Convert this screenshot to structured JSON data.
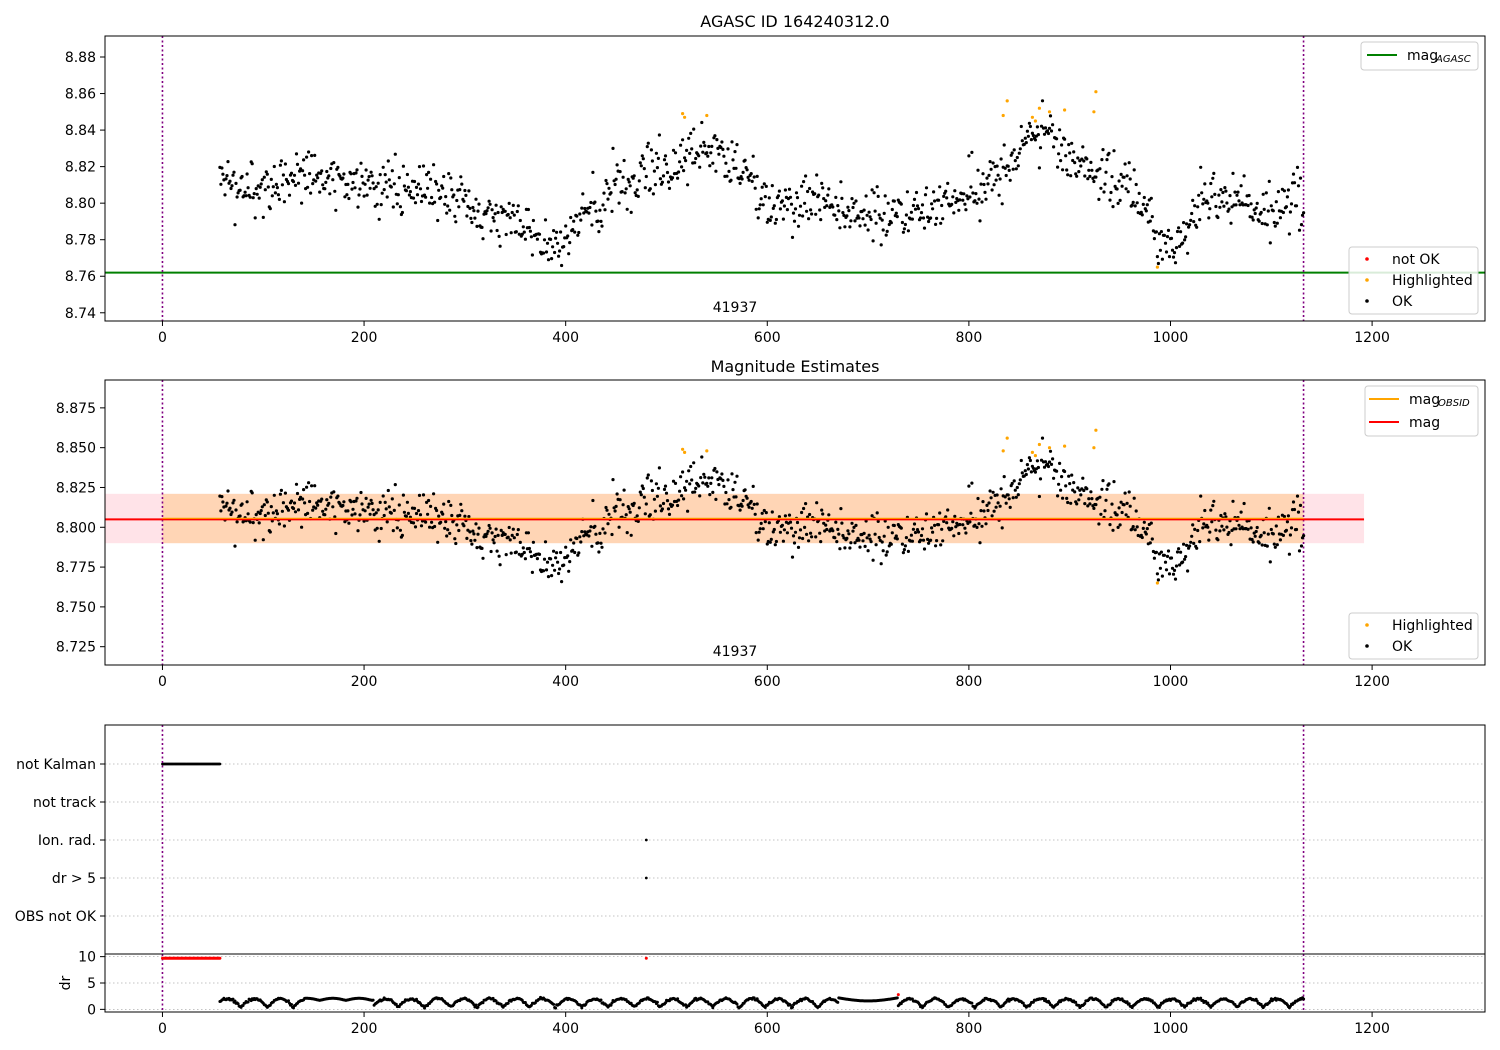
{
  "chart_data": [
    {
      "type": "scatter",
      "title": "AGASC ID 164240312.0",
      "xlabel": "",
      "ylabel": "",
      "xlim": [
        -57,
        1312
      ],
      "ylim": [
        8.7355,
        8.8915
      ],
      "xticks": [
        0,
        200,
        400,
        600,
        800,
        1000,
        1200
      ],
      "yticks": [
        8.74,
        8.76,
        8.78,
        8.8,
        8.82,
        8.84,
        8.86,
        8.88
      ],
      "grid": false,
      "obsid_label": "41937",
      "obsid_label_x": 568,
      "vlines": [
        0,
        1132
      ],
      "hline_mag_agasc": 8.762,
      "legend_lines": [
        {
          "label": "mag",
          "sub": "AGASC",
          "color": "#008000"
        }
      ],
      "legend_points": [
        {
          "label": "not OK",
          "color": "#ff0000"
        },
        {
          "label": "Highlighted",
          "color": "#ffa500"
        },
        {
          "label": "OK",
          "color": "#000000"
        }
      ],
      "series": [
        {
          "name": "Highlighted",
          "color": "#ffa500",
          "points": [
            [
              516,
              8.849
            ],
            [
              518,
              8.847
            ],
            [
              540,
              8.848
            ],
            [
              834,
              8.848
            ],
            [
              838,
              8.856
            ],
            [
              863,
              8.847
            ],
            [
              866,
              8.845
            ],
            [
              870,
              8.852
            ],
            [
              880,
              8.85
            ],
            [
              895,
              8.851
            ],
            [
              924,
              8.85
            ],
            [
              926,
              8.861
            ],
            [
              987,
              8.765
            ]
          ]
        }
      ]
    },
    {
      "type": "scatter",
      "title": "Magnitude Estimates",
      "xlabel": "",
      "ylabel": "",
      "xlim": [
        -57,
        1312
      ],
      "ylim": [
        8.7135,
        8.8925
      ],
      "xticks": [
        0,
        200,
        400,
        600,
        800,
        1000,
        1200
      ],
      "yticks": [
        8.725,
        8.75,
        8.775,
        8.8,
        8.825,
        8.85,
        8.875
      ],
      "grid": false,
      "obsid_label": "41937",
      "obsid_label_x": 568,
      "vlines": [
        0,
        1132
      ],
      "mag": 8.805,
      "band": [
        8.79,
        8.821
      ],
      "band_xrange": [
        -57,
        1192
      ],
      "band_inner_xrange": [
        0,
        1132
      ],
      "legend_lines": [
        {
          "label": "mag",
          "sub": "OBSID",
          "color": "#ffa500"
        },
        {
          "label": "mag",
          "sub": "",
          "color": "#ff0000"
        }
      ],
      "legend_points": [
        {
          "label": "Highlighted",
          "color": "#ffa500"
        },
        {
          "label": "OK",
          "color": "#000000"
        }
      ],
      "series": [
        {
          "name": "Highlighted",
          "color": "#ffa500",
          "points": [
            [
              516,
              8.849
            ],
            [
              518,
              8.847
            ],
            [
              540,
              8.848
            ],
            [
              834,
              8.848
            ],
            [
              838,
              8.856
            ],
            [
              863,
              8.847
            ],
            [
              866,
              8.845
            ],
            [
              870,
              8.852
            ],
            [
              880,
              8.85
            ],
            [
              895,
              8.851
            ],
            [
              924,
              8.85
            ],
            [
              926,
              8.861
            ],
            [
              987,
              8.765
            ]
          ]
        }
      ]
    },
    {
      "type": "scatter",
      "title": "",
      "xlim": [
        -57,
        1312
      ],
      "categories": [
        "not Kalman",
        "not track",
        "Ion. rad.",
        "dr > 5",
        "OBS not OK"
      ],
      "vlines": [
        0,
        1132
      ],
      "flags": {
        "not Kalman": [
          [
            0,
            57
          ]
        ],
        "not track": [],
        "Ion. rad.": [
          [
            480,
            480
          ]
        ],
        "dr > 5": [
          [
            480,
            480
          ]
        ],
        "OBS not OK": []
      }
    },
    {
      "type": "scatter",
      "title": "",
      "xlabel": "",
      "ylabel": "dr",
      "xlim": [
        -57,
        1312
      ],
      "ylim": [
        -0.5,
        10.5
      ],
      "xticks": [
        0,
        200,
        400,
        600,
        800,
        1000,
        1200
      ],
      "yticks": [
        0,
        5,
        10
      ],
      "grid": true,
      "vlines": [
        0,
        1132
      ],
      "red_points_at_10": [
        [
          0,
          57
        ],
        [
          480,
          480
        ]
      ],
      "red_extra": [
        [
          730,
          2.8
        ]
      ]
    }
  ]
}
